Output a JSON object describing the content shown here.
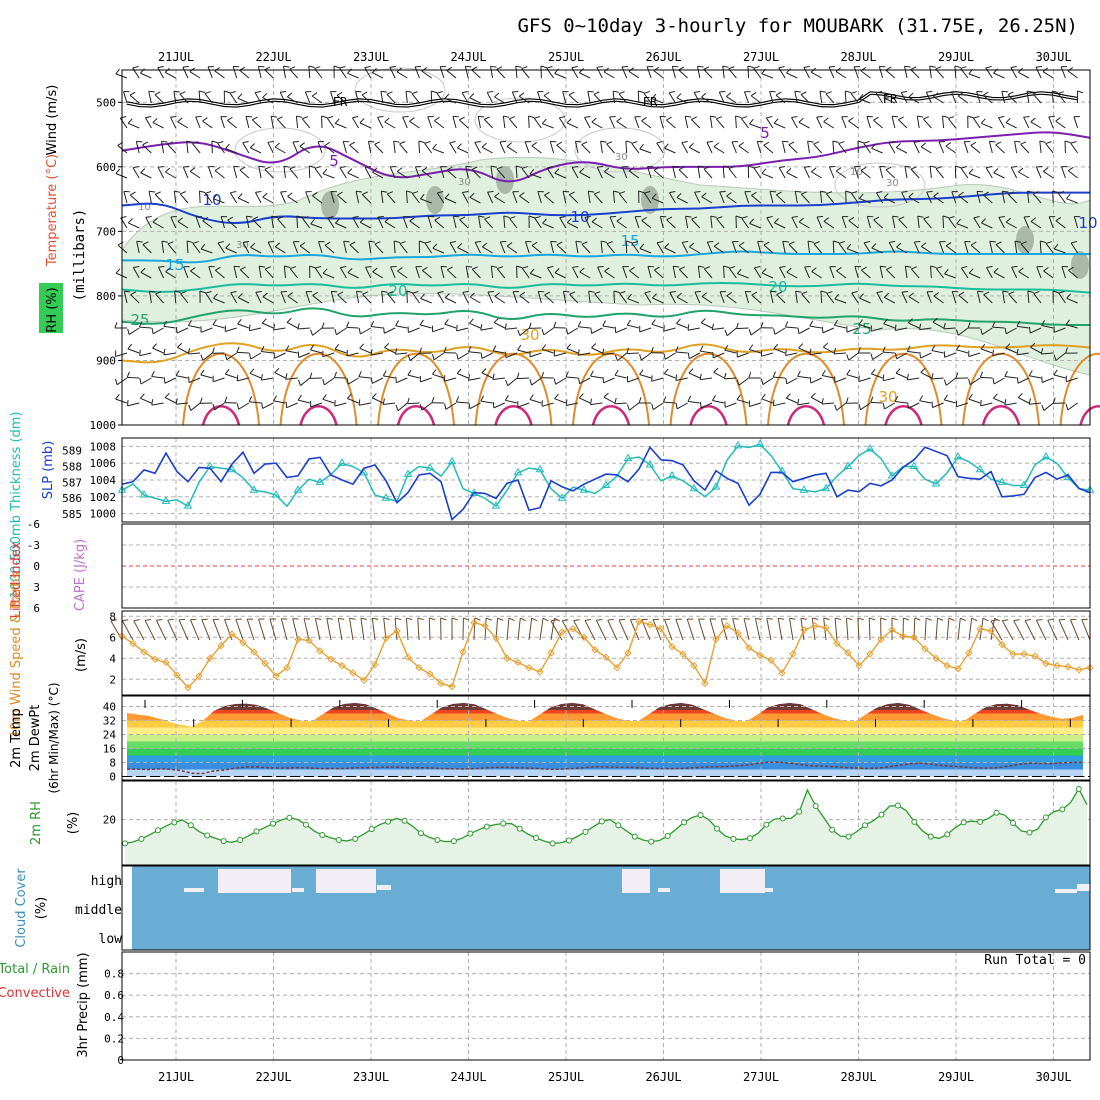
{
  "title": "GFS 0~10day 3-hourly for MOUBARK (31.75E, 26.25N)",
  "dates": [
    "21JUL",
    "22JUL",
    "23JUL",
    "24JUL",
    "25JUL",
    "26JUL",
    "27JUL",
    "28JUL",
    "29JUL",
    "30JUL"
  ],
  "colors": {
    "rh_fill": "#dff0df",
    "rh_fill_dark": "#a9b8a9",
    "thick_line": "#22bbbb",
    "slp_line": "#1a3fcc",
    "wind_line": "#e8a030",
    "rh2m_line": "#2e9a2e",
    "cloud_fill": "#6aadd4",
    "cloud_clear": "#f2eef6",
    "cape_zero": "#e84040",
    "grid": "#b0b0b0"
  },
  "chart_data": [
    {
      "id": "upper_air",
      "type": "contour",
      "title": "GFS 0~10day 3-hourly for MOUBARK (31.75E, 26.25N)",
      "ylabel_parts": [
        "Wind (m/s)",
        "Temperature (°C)",
        "RH (%)"
      ],
      "ylabel_unit": "(millibars)",
      "yticks": [
        "500",
        "600",
        "700",
        "800",
        "900",
        "1000"
      ],
      "yrange": [
        450,
        1000
      ],
      "labels": {
        "freezing": "FR",
        "isotherms": [
          "5",
          "10",
          "15",
          "20",
          "25",
          "30"
        ],
        "rh": [
          "10",
          "30"
        ]
      },
      "isotherm_levels": [
        {
          "t": "5",
          "color": "#7a1fb0",
          "y": [
            575,
            565,
            560,
            580,
            600,
            560,
            590,
            620,
            610,
            600,
            630,
            600,
            590,
            605,
            600,
            600,
            600,
            590,
            585,
            570,
            560,
            560,
            555,
            550,
            545,
            555
          ]
        },
        {
          "t": "10",
          "color": "#1a3fcc",
          "y": [
            660,
            655,
            680,
            690,
            675,
            680,
            680,
            680,
            675,
            675,
            670,
            675,
            675,
            670,
            665,
            665,
            660,
            660,
            660,
            655,
            650,
            650,
            645,
            640,
            640,
            640
          ]
        },
        {
          "t": "15",
          "color": "#19a6dc",
          "y": [
            745,
            745,
            750,
            735,
            740,
            735,
            745,
            740,
            740,
            735,
            740,
            735,
            740,
            735,
            740,
            735,
            730,
            735,
            735,
            735,
            730,
            735,
            735,
            735,
            735,
            735
          ]
        },
        {
          "t": "20",
          "color": "#1abc9c",
          "y": [
            790,
            795,
            790,
            780,
            785,
            780,
            790,
            780,
            785,
            780,
            790,
            780,
            785,
            780,
            785,
            780,
            780,
            785,
            785,
            780,
            785,
            785,
            790,
            790,
            790,
            795
          ]
        },
        {
          "t": "25",
          "color": "#22a36a",
          "y": [
            840,
            845,
            830,
            820,
            830,
            815,
            835,
            825,
            830,
            820,
            840,
            825,
            835,
            825,
            835,
            820,
            830,
            830,
            835,
            830,
            840,
            835,
            840,
            840,
            845,
            845
          ]
        },
        {
          "t": "30",
          "color": "#e0a020",
          "y": [
            900,
            905,
            880,
            870,
            890,
            870,
            900,
            880,
            890,
            875,
            895,
            880,
            895,
            880,
            890,
            870,
            890,
            880,
            890,
            880,
            885,
            875,
            880,
            880,
            875,
            880
          ]
        }
      ]
    },
    {
      "id": "slp_thickness",
      "type": "line",
      "ylabel_left": "1000-500mb Thickness (dm)",
      "ylabel_right": "SLP (mb)",
      "thickness_ticks": [
        "589",
        "588",
        "587",
        "586",
        "585"
      ],
      "slp_ticks": [
        "1008",
        "1006",
        "1004",
        "1002",
        "1000"
      ],
      "series": [
        {
          "name": "SLP (mb)",
          "values": [
            1003.5,
            1003.8,
            1005.2,
            1004.8,
            1007.2,
            1005.0,
            1003.8,
            1005.5,
            1005.4,
            1003.8,
            1005.9,
            1007.3,
            1004.8,
            1005.9,
            1006.0,
            1004.3,
            1004.5,
            1006.5,
            1006.7,
            1004.6,
            1004.0,
            1003.5,
            1005.4,
            1005.8,
            1003.9,
            1001.3,
            1002.5,
            1004.6,
            1004.8,
            1003.8,
            999.3,
            1000.5,
            1002.5,
            1002.4,
            1001.8,
            1003.6,
            1004.0,
            1000.4,
            1000.7,
            1003.9,
            1003.2,
            1002.7,
            1003.5,
            1004.1,
            1004.7,
            1004.6,
            1003.8,
            1005.3,
            1007.9,
            1006.4,
            1006.3,
            1005.8,
            1003.9,
            1002.8,
            1005.1,
            1004.2,
            1003.6,
            1001.0,
            1002.3,
            1004.9,
            1004.9,
            1003.8,
            1004.2,
            1004.6,
            1004.8,
            1002.0,
            1002.8,
            1002.6,
            1003.6,
            1003.3,
            1004.0,
            1005.5,
            1006.4,
            1007.9,
            1007.4,
            1006.9,
            1004.4,
            1004.2,
            1004.1,
            1005.0,
            1002.0,
            1002.1,
            1002.3,
            1004.3,
            1004.9,
            1004.1,
            1004.6,
            1003.0,
            1002.5
          ]
        },
        {
          "name": "Thickness (dm)",
          "values": [
            586.5,
            586.9,
            586.2,
            586.0,
            585.8,
            585.9,
            585.5,
            587.0,
            588.0,
            587.9,
            587.8,
            587.3,
            586.5,
            586.4,
            586.2,
            585.5,
            586.5,
            587.2,
            587.0,
            587.5,
            588.2,
            588.0,
            587.6,
            586.2,
            586.0,
            585.8,
            587.5,
            588.0,
            587.9,
            587.4,
            588.3,
            586.6,
            586.3,
            586.0,
            585.5,
            586.5,
            587.6,
            587.9,
            587.8,
            586.6,
            586.0,
            586.7,
            586.5,
            586.3,
            586.8,
            587.4,
            588.5,
            588.6,
            588.1,
            587.1,
            587.4,
            587.1,
            586.6,
            586.1,
            586.7,
            588.4,
            589.3,
            589.2,
            589.4,
            588.7,
            587.7,
            586.6,
            586.5,
            586.4,
            586.6,
            587.4,
            588.0,
            588.7,
            589.1,
            588.5,
            587.4,
            588.0,
            588.0,
            587.2,
            586.9,
            587.6,
            588.6,
            588.3,
            587.8,
            587.2,
            587.0,
            586.8,
            586.8,
            588.1,
            588.6,
            588.2,
            587.3,
            586.6,
            586.5
          ]
        }
      ]
    },
    {
      "id": "stability",
      "type": "line",
      "ylabel_left": "Lifted Index",
      "ylabel_right": "CAPE (J/kg)",
      "yticks": [
        "-6",
        "-3",
        "0",
        "3",
        "6"
      ],
      "yrange": [
        -6,
        6
      ],
      "series": []
    },
    {
      "id": "wind10m",
      "type": "line",
      "ylabel": "10m Wind Speed & Barbs",
      "yunit": "(m/s)",
      "yticks": [
        "8",
        "6",
        "4",
        "2"
      ],
      "yrange": [
        0.5,
        8.5
      ],
      "series": [
        {
          "name": "10m Wind Speed",
          "values": [
            6.1,
            5.4,
            4.6,
            3.9,
            3.6,
            2.4,
            1.2,
            2.3,
            4.0,
            5.2,
            6.3,
            5.5,
            4.6,
            3.5,
            2.3,
            3.1,
            5.8,
            5.7,
            4.7,
            3.9,
            3.3,
            2.6,
            1.9,
            3.4,
            5.9,
            6.6,
            4.1,
            3.1,
            2.5,
            1.6,
            1.3,
            4.6,
            7.4,
            7.1,
            5.9,
            4.0,
            3.6,
            3.1,
            2.7,
            4.5,
            6.5,
            6.8,
            6.0,
            4.8,
            4.1,
            3.1,
            4.5,
            7.5,
            7.2,
            6.8,
            5.1,
            4.4,
            3.3,
            1.6,
            5.8,
            7.1,
            6.4,
            5.0,
            4.3,
            3.8,
            2.6,
            4.4,
            6.7,
            7.1,
            6.9,
            5.4,
            4.5,
            3.3,
            4.4,
            5.8,
            6.7,
            6.1,
            6.0,
            4.9,
            4.0,
            3.3,
            3.0,
            4.5,
            6.8,
            6.6,
            5.3,
            4.4,
            4.4,
            4.2,
            3.5,
            3.3,
            3.2,
            2.9,
            3.1
          ]
        }
      ]
    },
    {
      "id": "temp2m",
      "type": "area",
      "ylabel_parts": [
        "2m Temp",
        "2m DewPt",
        "(6hr Min/Max) (°C)"
      ],
      "yticks": [
        "40",
        "32",
        "24",
        "16",
        "8",
        "0"
      ],
      "yrange": [
        -2,
        46
      ],
      "series": [
        {
          "name": "2m Temp",
          "values": [
            36.2,
            35.4,
            34.6,
            33.0,
            31.0,
            29.5,
            28.5,
            32.0,
            37.5,
            40.2,
            41.4,
            41.6,
            40.8,
            38.6,
            36.0,
            33.5,
            32.0,
            31.5,
            35.5,
            39.4,
            41.4,
            42.0,
            41.2,
            38.7,
            36.0,
            33.3,
            32.0,
            31.5,
            35.5,
            39.6,
            41.4,
            42.0,
            41.2,
            38.6,
            35.9,
            33.4,
            32.0,
            31.5,
            35.5,
            39.4,
            41.4,
            42.0,
            41.2,
            38.5,
            35.9,
            33.4,
            32.0,
            31.5,
            35.5,
            39.5,
            41.3,
            42.0,
            41.1,
            38.5,
            36.0,
            33.5,
            32.0,
            31.5,
            35.2,
            39.4,
            41.3,
            42.0,
            41.3,
            38.5,
            35.8,
            33.4,
            32.0,
            31.5,
            35.4,
            39.2,
            41.3,
            42.0,
            40.9,
            38.3,
            35.8,
            33.5,
            32.0,
            31.5,
            35.7,
            39.4,
            41.3,
            41.6,
            40.7,
            38.3,
            36.1,
            34.3,
            33.0,
            33.4,
            35.2
          ]
        },
        {
          "name": "2m DewPt",
          "values": [
            4.2,
            4.2,
            4.0,
            4.4,
            4.1,
            3.3,
            1.8,
            1.7,
            3.2,
            3.7,
            4.8,
            5.4,
            5.4,
            5.0,
            4.8,
            4.9,
            5.1,
            4.8,
            4.5,
            4.6,
            4.6,
            5.0,
            5.1,
            5.2,
            5.4,
            5.3,
            5.0,
            5.0,
            4.9,
            4.5,
            4.4,
            4.3,
            4.5,
            4.9,
            5.2,
            5.2,
            5.0,
            4.8,
            4.5,
            4.1,
            4.2,
            4.6,
            5.0,
            5.5,
            5.5,
            5.3,
            5.3,
            5.0,
            4.7,
            4.6,
            4.5,
            4.6,
            4.9,
            5.3,
            5.5,
            5.6,
            6.0,
            6.5,
            7.4,
            8.2,
            8.2,
            7.6,
            6.8,
            6.1,
            5.9,
            5.6,
            5.2,
            4.9,
            4.6,
            4.8,
            5.4,
            6.3,
            7.2,
            7.6,
            7.1,
            6.3,
            5.8,
            5.4,
            5.0,
            4.8,
            5.0,
            5.8,
            6.8,
            7.6,
            7.5,
            7.3,
            7.8,
            8.0,
            8.1
          ]
        }
      ]
    },
    {
      "id": "rh2m",
      "type": "area",
      "ylabel": "2m RH",
      "yunit": "(%)",
      "yticks": [
        "20"
      ],
      "yrange": [
        0,
        37
      ],
      "series": [
        {
          "name": "2m RH",
          "values": [
            9.5,
            10.2,
            11.5,
            13.3,
            15.3,
            17.2,
            18.8,
            19.8,
            17.5,
            14.8,
            13.0,
            11.8,
            10.5,
            10.0,
            11.0,
            12.8,
            14.8,
            16.5,
            18.2,
            19.8,
            20.8,
            20.0,
            17.8,
            15.0,
            13.2,
            12.0,
            11.0,
            10.6,
            11.5,
            13.5,
            15.8,
            17.8,
            19.1,
            20.5,
            19.5,
            17.0,
            14.0,
            12.2,
            11.0,
            10.3,
            10.5,
            11.8,
            13.8,
            15.5,
            16.9,
            17.8,
            18.3,
            18.2,
            16.0,
            13.6,
            11.9,
            10.5,
            9.5,
            9.8,
            10.8,
            12.5,
            14.6,
            17.0,
            19.2,
            20.0,
            17.5,
            15.0,
            12.5,
            11.0,
            10.3,
            10.8,
            12.8,
            15.7,
            18.8,
            21.0,
            22.0,
            20.0,
            16.0,
            12.8,
            11.5,
            11.2,
            11.8,
            14.0,
            17.8,
            20.2,
            20.5,
            20.5,
            23.5,
            33.0,
            26.0,
            20.8,
            15.5,
            12.7,
            12.5,
            14.7,
            17.5,
            19.5,
            22.2,
            26.0,
            26.2,
            24.0,
            19.0,
            15.0,
            12.5,
            11.7,
            13.5,
            16.5,
            18.8,
            19.3,
            19.0,
            20.5,
            23.0,
            22.0,
            18.5,
            15.0,
            14.3,
            15.8,
            21.0,
            23.5,
            24.5,
            27.5,
            33.5,
            26.5
          ]
        }
      ]
    },
    {
      "id": "cloud",
      "type": "heatmap",
      "ylabel": "Cloud Cover",
      "yunit": "(%)",
      "levels": [
        "high",
        "middle",
        "low"
      ]
    },
    {
      "id": "precip",
      "type": "bar",
      "ylabel_left": "Total / Rain",
      "ylabel_left2": "Convective",
      "ylabel": "3hr Precip",
      "yunit": "(mm)",
      "yticks": [
        "0.8",
        "0.6",
        "0.4",
        "0.2",
        "0"
      ],
      "yrange": [
        0,
        1
      ],
      "run_total": "Run Total = 0",
      "values": []
    }
  ]
}
